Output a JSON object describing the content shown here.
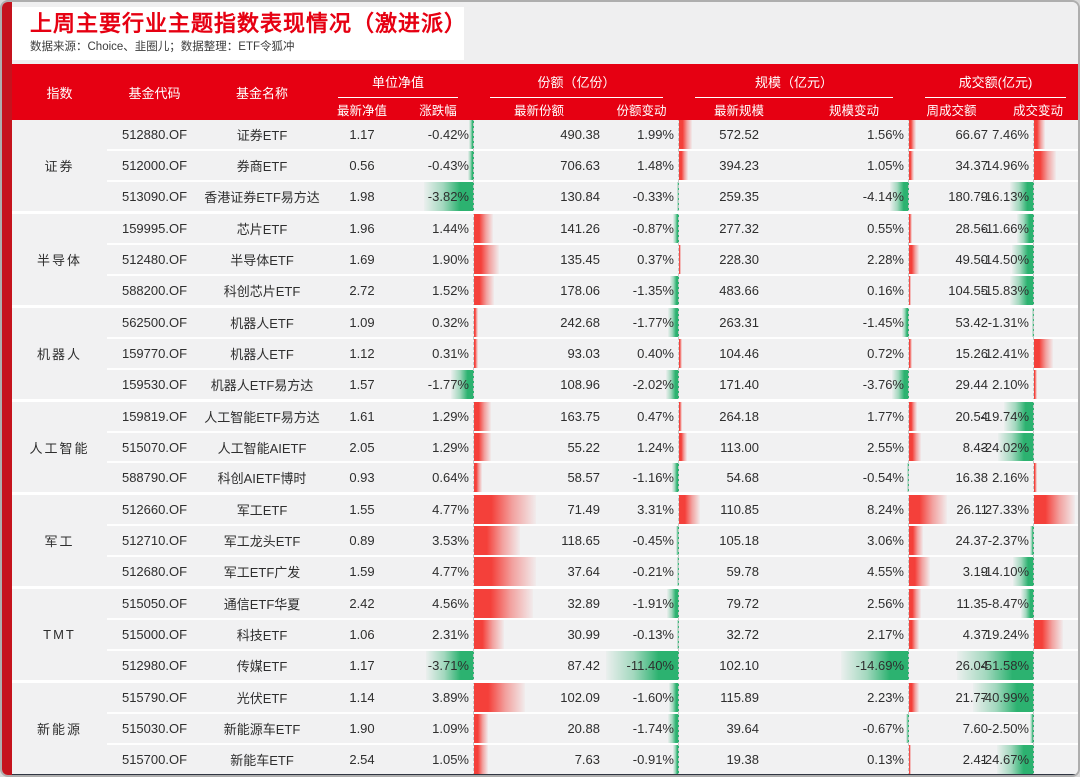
{
  "page": {
    "title": "上周主要行业主题指数表现情况（激进派）",
    "subtitle": "数据来源：Choice、韭圈儿；数据整理：ETF令狐冲"
  },
  "colors": {
    "header_red": "#e60012",
    "side_strip_red": "#c5131d",
    "positive_bar_red": "#f4403a",
    "negative_bar_green": "#2cb270",
    "row_background": "#f1f1f2"
  },
  "chart_data": {
    "type": "table",
    "title": "上周主要行业主题指数表现情况（激进派）",
    "source_note": "数据来源：Choice、韭圈儿；数据整理：ETF令狐冲",
    "header": {
      "index": "指数",
      "code": "基金代码",
      "name": "基金名称"
    },
    "column_groups": [
      {
        "label": "单位净值",
        "subs": [
          "最新净值",
          "涨跌幅"
        ]
      },
      {
        "label": "份额（亿份）",
        "subs": [
          "最新份额",
          "份额变动"
        ]
      },
      {
        "label": "规模（亿元）",
        "subs": [
          "最新规模",
          "规模变动"
        ]
      },
      {
        "label": "成交额(亿元)",
        "subs": [
          "周成交额",
          "成交变动"
        ]
      }
    ],
    "groups": [
      {
        "industry": "证券",
        "funds": [
          {
            "code": "512880.OF",
            "name": "证券ETF",
            "nav": "1.17",
            "chg": "-0.42%",
            "shares": "490.38",
            "shares_chg": "1.99%",
            "aum": "572.52",
            "aum_chg": "1.56%",
            "turnover": "66.67",
            "turnover_chg": "7.46%"
          },
          {
            "code": "512000.OF",
            "name": "券商ETF",
            "nav": "0.56",
            "chg": "-0.43%",
            "shares": "706.63",
            "shares_chg": "1.48%",
            "aum": "394.23",
            "aum_chg": "1.05%",
            "turnover": "34.37",
            "turnover_chg": "14.96%"
          },
          {
            "code": "513090.OF",
            "name": "香港证券ETF易方达",
            "nav": "1.98",
            "chg": "-3.82%",
            "shares": "130.84",
            "shares_chg": "-0.33%",
            "aum": "259.35",
            "aum_chg": "-4.14%",
            "turnover": "180.79",
            "turnover_chg": "-16.13%"
          }
        ]
      },
      {
        "industry": "半导体",
        "funds": [
          {
            "code": "159995.OF",
            "name": "芯片ETF",
            "nav": "1.96",
            "chg": "1.44%",
            "shares": "141.26",
            "shares_chg": "-0.87%",
            "aum": "277.32",
            "aum_chg": "0.55%",
            "turnover": "28.56",
            "turnover_chg": "-11.66%"
          },
          {
            "code": "512480.OF",
            "name": "半导体ETF",
            "nav": "1.69",
            "chg": "1.90%",
            "shares": "135.45",
            "shares_chg": "0.37%",
            "aum": "228.30",
            "aum_chg": "2.28%",
            "turnover": "49.50",
            "turnover_chg": "-14.50%"
          },
          {
            "code": "588200.OF",
            "name": "科创芯片ETF",
            "nav": "2.72",
            "chg": "1.52%",
            "shares": "178.06",
            "shares_chg": "-1.35%",
            "aum": "483.66",
            "aum_chg": "0.16%",
            "turnover": "104.55",
            "turnover_chg": "-15.83%"
          }
        ]
      },
      {
        "industry": "机器人",
        "funds": [
          {
            "code": "562500.OF",
            "name": "机器人ETF",
            "nav": "1.09",
            "chg": "0.32%",
            "shares": "242.68",
            "shares_chg": "-1.77%",
            "aum": "263.31",
            "aum_chg": "-1.45%",
            "turnover": "53.42",
            "turnover_chg": "-1.31%"
          },
          {
            "code": "159770.OF",
            "name": "机器人ETF",
            "nav": "1.12",
            "chg": "0.31%",
            "shares": "93.03",
            "shares_chg": "0.40%",
            "aum": "104.46",
            "aum_chg": "0.72%",
            "turnover": "15.26",
            "turnover_chg": "12.41%"
          },
          {
            "code": "159530.OF",
            "name": "机器人ETF易方达",
            "nav": "1.57",
            "chg": "-1.77%",
            "shares": "108.96",
            "shares_chg": "-2.02%",
            "aum": "171.40",
            "aum_chg": "-3.76%",
            "turnover": "29.44",
            "turnover_chg": "2.10%"
          }
        ]
      },
      {
        "industry": "人工智能",
        "funds": [
          {
            "code": "159819.OF",
            "name": "人工智能ETF易方达",
            "nav": "1.61",
            "chg": "1.29%",
            "shares": "163.75",
            "shares_chg": "0.47%",
            "aum": "264.18",
            "aum_chg": "1.77%",
            "turnover": "20.54",
            "turnover_chg": "-19.74%"
          },
          {
            "code": "515070.OF",
            "name": "人工智能AIETF",
            "nav": "2.05",
            "chg": "1.29%",
            "shares": "55.22",
            "shares_chg": "1.24%",
            "aum": "113.00",
            "aum_chg": "2.55%",
            "turnover": "8.43",
            "turnover_chg": "-24.02%"
          },
          {
            "code": "588790.OF",
            "name": "科创AIETF博时",
            "nav": "0.93",
            "chg": "0.64%",
            "shares": "58.57",
            "shares_chg": "-1.16%",
            "aum": "54.68",
            "aum_chg": "-0.54%",
            "turnover": "16.38",
            "turnover_chg": "2.16%"
          }
        ]
      },
      {
        "industry": "军工",
        "funds": [
          {
            "code": "512660.OF",
            "name": "军工ETF",
            "nav": "1.55",
            "chg": "4.77%",
            "shares": "71.49",
            "shares_chg": "3.31%",
            "aum": "110.85",
            "aum_chg": "8.24%",
            "turnover": "26.11",
            "turnover_chg": "27.33%"
          },
          {
            "code": "512710.OF",
            "name": "军工龙头ETF",
            "nav": "0.89",
            "chg": "3.53%",
            "shares": "118.65",
            "shares_chg": "-0.45%",
            "aum": "105.18",
            "aum_chg": "3.06%",
            "turnover": "24.37",
            "turnover_chg": "-2.37%"
          },
          {
            "code": "512680.OF",
            "name": "军工ETF广发",
            "nav": "1.59",
            "chg": "4.77%",
            "shares": "37.64",
            "shares_chg": "-0.21%",
            "aum": "59.78",
            "aum_chg": "4.55%",
            "turnover": "3.19",
            "turnover_chg": "-14.10%"
          }
        ]
      },
      {
        "industry": "TMT",
        "funds": [
          {
            "code": "515050.OF",
            "name": "通信ETF华夏",
            "nav": "2.42",
            "chg": "4.56%",
            "shares": "32.89",
            "shares_chg": "-1.91%",
            "aum": "79.72",
            "aum_chg": "2.56%",
            "turnover": "11.35",
            "turnover_chg": "-8.47%"
          },
          {
            "code": "515000.OF",
            "name": "科技ETF",
            "nav": "1.06",
            "chg": "2.31%",
            "shares": "30.99",
            "shares_chg": "-0.13%",
            "aum": "32.72",
            "aum_chg": "2.17%",
            "turnover": "4.37",
            "turnover_chg": "19.24%"
          },
          {
            "code": "512980.OF",
            "name": "传媒ETF",
            "nav": "1.17",
            "chg": "-3.71%",
            "shares": "87.42",
            "shares_chg": "-11.40%",
            "aum": "102.10",
            "aum_chg": "-14.69%",
            "turnover": "26.04",
            "turnover_chg": "-51.58%"
          }
        ]
      },
      {
        "industry": "新能源",
        "funds": [
          {
            "code": "515790.OF",
            "name": "光伏ETF",
            "nav": "1.14",
            "chg": "3.89%",
            "shares": "102.09",
            "shares_chg": "-1.60%",
            "aum": "115.89",
            "aum_chg": "2.23%",
            "turnover": "21.77",
            "turnover_chg": "-40.99%"
          },
          {
            "code": "515030.OF",
            "name": "新能源车ETF",
            "nav": "1.90",
            "chg": "1.09%",
            "shares": "20.88",
            "shares_chg": "-1.74%",
            "aum": "39.64",
            "aum_chg": "-0.67%",
            "turnover": "7.60",
            "turnover_chg": "-2.50%"
          },
          {
            "code": "515700.OF",
            "name": "新能车ETF",
            "nav": "2.54",
            "chg": "1.05%",
            "shares": "7.63",
            "shares_chg": "-0.91%",
            "aum": "19.38",
            "aum_chg": "0.13%",
            "turnover": "2.41",
            "turnover_chg": "-24.67%"
          }
        ]
      }
    ]
  }
}
